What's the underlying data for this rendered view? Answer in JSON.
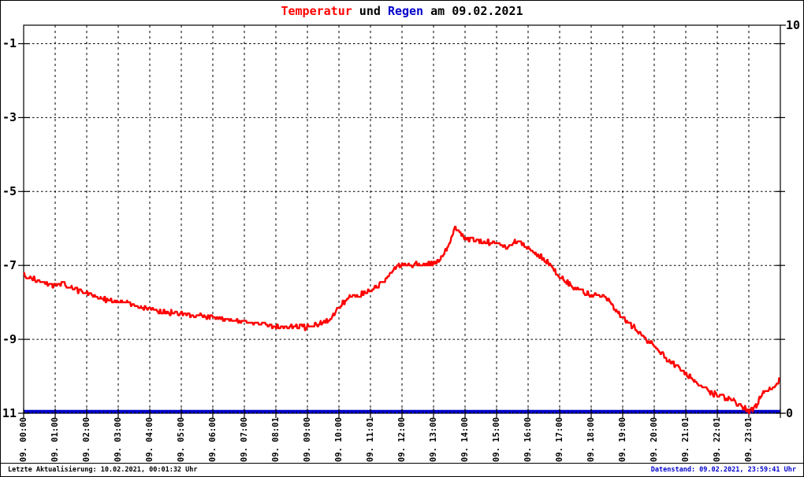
{
  "title": {
    "temperatur": "Temperatur",
    "und": " und ",
    "regen": "Regen",
    "date_suffix": " am 09.02.2021"
  },
  "colors": {
    "temperature": "#ff0000",
    "rain": "#0000cc",
    "grid": "#000000",
    "frame": "#000000",
    "status_left_text": "#000000",
    "status_right_text": "#0000cc",
    "background": "#ffffff"
  },
  "status_bar": {
    "left_text": "Letzte Aktualisierung: 10.02.2021, 00:01:32 Uhr",
    "right_text": "Datenstand: 09.02.2021, 23:59:41 Uhr"
  },
  "chart_data": {
    "type": "line",
    "title": "Temperatur und Regen am 09.02.2021",
    "grid": true,
    "legend": "none",
    "x_axis": {
      "unit": "time",
      "range_hours": [
        0,
        24
      ],
      "tick_labels": [
        "09. 00:00",
        "09. 01:00",
        "09. 02:00",
        "09. 03:00",
        "09. 04:00",
        "09. 05:00",
        "09. 06:00",
        "09. 07:00",
        "09. 08:01",
        "09. 09:00",
        "09. 10:00",
        "09. 11:01",
        "09. 12:00",
        "09. 13:00",
        "09. 14:00",
        "09. 15:00",
        "09. 16:00",
        "09. 17:00",
        "09. 18:00",
        "09. 19:00",
        "09. 20:00",
        "09. 21:01",
        "09. 22:01",
        "09. 23:01"
      ]
    },
    "y_axis_left": {
      "range": [
        -11,
        -0.5
      ],
      "tick_values": [
        -1,
        -3,
        -5,
        -7,
        -9,
        -11
      ],
      "tick_labels": [
        "-1",
        "-3",
        "-5",
        "-7",
        "-9",
        "-11"
      ]
    },
    "y_axis_right": {
      "range": [
        0,
        10
      ],
      "tick_values": [
        10,
        0
      ],
      "tick_labels": [
        "10",
        "0"
      ]
    },
    "series": [
      {
        "name": "Temperatur",
        "axis": "left",
        "color": "#ff0000",
        "points": [
          [
            0.0,
            -7.25
          ],
          [
            0.3,
            -7.35
          ],
          [
            0.7,
            -7.5
          ],
          [
            1.0,
            -7.55
          ],
          [
            1.25,
            -7.5
          ],
          [
            1.6,
            -7.65
          ],
          [
            2.0,
            -7.75
          ],
          [
            2.5,
            -7.9
          ],
          [
            3.0,
            -7.97
          ],
          [
            3.5,
            -8.07
          ],
          [
            4.0,
            -8.2
          ],
          [
            4.5,
            -8.25
          ],
          [
            5.0,
            -8.3
          ],
          [
            5.5,
            -8.35
          ],
          [
            6.0,
            -8.4
          ],
          [
            6.5,
            -8.45
          ],
          [
            7.0,
            -8.5
          ],
          [
            7.5,
            -8.58
          ],
          [
            8.0,
            -8.65
          ],
          [
            8.5,
            -8.68
          ],
          [
            9.2,
            -8.65
          ],
          [
            9.5,
            -8.55
          ],
          [
            9.75,
            -8.45
          ],
          [
            10.0,
            -8.1
          ],
          [
            10.3,
            -7.9
          ],
          [
            10.6,
            -7.8
          ],
          [
            11.0,
            -7.7
          ],
          [
            11.4,
            -7.45
          ],
          [
            11.8,
            -7.05
          ],
          [
            12.0,
            -6.95
          ],
          [
            12.3,
            -7.0
          ],
          [
            12.6,
            -6.95
          ],
          [
            13.0,
            -6.95
          ],
          [
            13.2,
            -6.85
          ],
          [
            13.45,
            -6.5
          ],
          [
            13.67,
            -5.97
          ],
          [
            13.85,
            -6.15
          ],
          [
            14.1,
            -6.28
          ],
          [
            14.5,
            -6.33
          ],
          [
            15.0,
            -6.42
          ],
          [
            15.35,
            -6.5
          ],
          [
            15.7,
            -6.3
          ],
          [
            16.0,
            -6.55
          ],
          [
            16.5,
            -6.8
          ],
          [
            17.0,
            -7.3
          ],
          [
            17.5,
            -7.62
          ],
          [
            18.0,
            -7.78
          ],
          [
            18.4,
            -7.82
          ],
          [
            19.0,
            -8.42
          ],
          [
            19.5,
            -8.78
          ],
          [
            20.0,
            -9.2
          ],
          [
            20.5,
            -9.6
          ],
          [
            21.0,
            -9.92
          ],
          [
            21.5,
            -10.3
          ],
          [
            22.0,
            -10.52
          ],
          [
            22.5,
            -10.66
          ],
          [
            22.75,
            -10.78
          ],
          [
            23.0,
            -10.95
          ],
          [
            23.2,
            -10.85
          ],
          [
            23.4,
            -10.52
          ],
          [
            23.6,
            -10.35
          ],
          [
            23.85,
            -10.25
          ],
          [
            23.97,
            -10.1
          ]
        ]
      },
      {
        "name": "Regen",
        "axis": "right",
        "color": "#0000cc",
        "points": [
          [
            0,
            0
          ],
          [
            24,
            0
          ]
        ]
      }
    ]
  }
}
